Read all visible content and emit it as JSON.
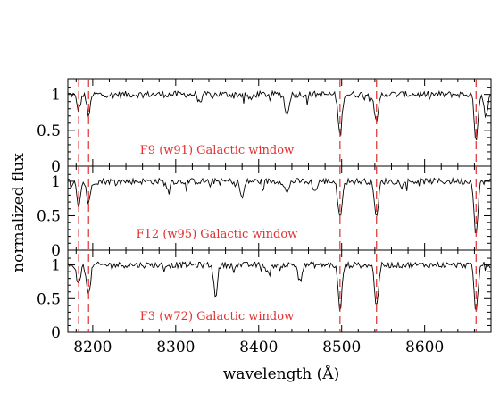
{
  "chart_data": {
    "type": "line",
    "xlabel": "wavelength (Å)",
    "ylabel": "normalized flux",
    "xlim": [
      8170,
      8680
    ],
    "x_ticks": [
      8200,
      8300,
      8400,
      8500,
      8600
    ],
    "x_tick_labels": [
      "8200",
      "8300",
      "8400",
      "8500",
      "8600"
    ],
    "grid": false,
    "panel_y_ticks": [
      "0",
      "0.5",
      "1"
    ],
    "vertical_reference_lines": [
      8183,
      8195,
      8498,
      8542,
      8662
    ],
    "reference_line_color": "#e03030",
    "line_color": "#000000",
    "panels": [
      {
        "label": "F9 (w91) Galactic window",
        "ylim": [
          0,
          1.22
        ],
        "absorption_lines": [
          [
            8183,
            0.22
          ],
          [
            8195,
            0.28
          ],
          [
            8330,
            0.1
          ],
          [
            8390,
            0.08
          ],
          [
            8434,
            0.3
          ],
          [
            8498,
            0.58
          ],
          [
            8542,
            0.42
          ],
          [
            8662,
            0.62
          ],
          [
            8674,
            0.3
          ]
        ]
      },
      {
        "label": "F12 (w95) Galactic window",
        "ylim": [
          0,
          1.22
        ],
        "absorption_lines": [
          [
            8183,
            0.35
          ],
          [
            8195,
            0.32
          ],
          [
            8290,
            0.1
          ],
          [
            8380,
            0.25
          ],
          [
            8434,
            0.18
          ],
          [
            8468,
            0.15
          ],
          [
            8498,
            0.55
          ],
          [
            8542,
            0.55
          ],
          [
            8662,
            0.78
          ]
        ]
      },
      {
        "label": "F3 (w72) Galactic window",
        "ylim": [
          0,
          1.22
        ],
        "absorption_lines": [
          [
            8183,
            0.3
          ],
          [
            8195,
            0.45
          ],
          [
            8348,
            0.45
          ],
          [
            8412,
            0.15
          ],
          [
            8450,
            0.22
          ],
          [
            8498,
            0.68
          ],
          [
            8542,
            0.62
          ],
          [
            8662,
            0.7
          ]
        ]
      }
    ]
  }
}
